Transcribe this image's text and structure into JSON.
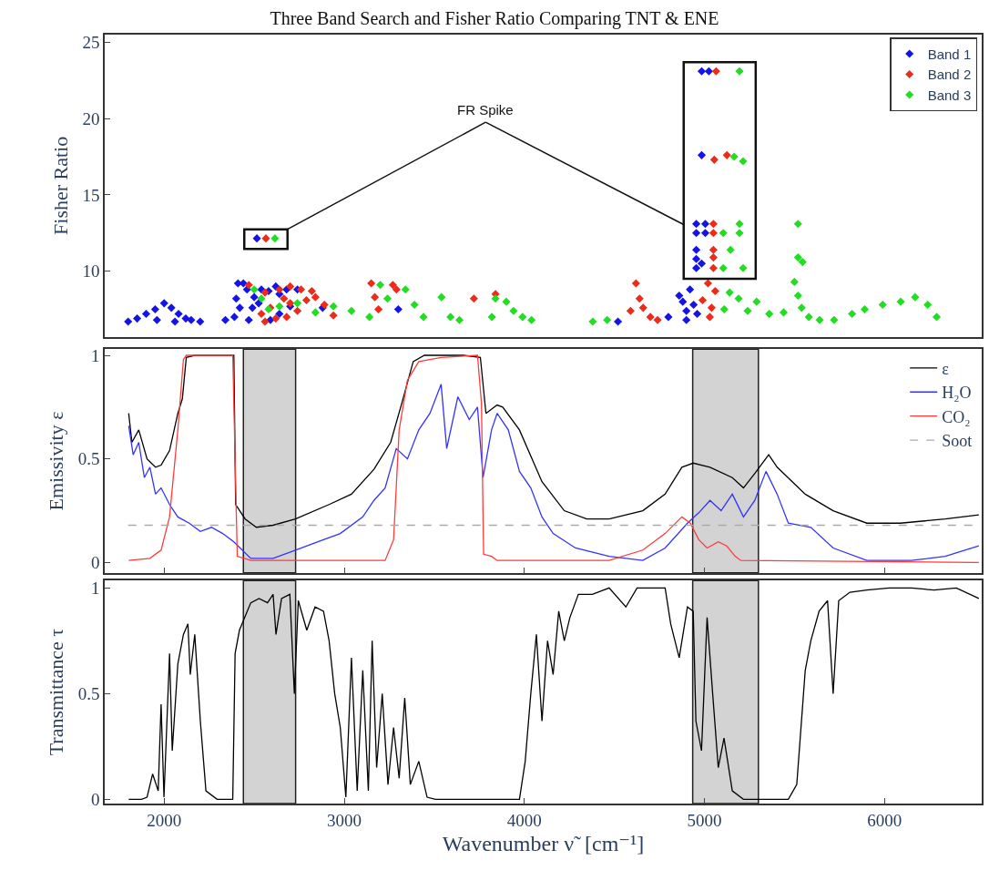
{
  "chart_data": [
    {
      "type": "scatter",
      "title": "Three Band Search and Fisher Ratio Comparing TNT & ENE",
      "ylabel": "Fisher Ratio",
      "xlim": [
        1670,
        6540
      ],
      "ylim": [
        5.7,
        25.5
      ],
      "yticks": [
        10,
        15,
        20,
        25
      ],
      "tick_labels": "y",
      "legend": "top right",
      "marker": "diamond",
      "annotations": [
        "FR Spike"
      ],
      "series": [
        {
          "name": "Band 1",
          "color": "#1414e6",
          "x": [
            1800,
            1850,
            1900,
            1950,
            2000,
            2040,
            2080,
            2120,
            1960,
            2060,
            2150,
            2200,
            2340,
            2390,
            2400,
            2410,
            2440,
            2460,
            2500,
            2540,
            2580,
            2620,
            2640,
            2680,
            2740,
            2490,
            2525,
            2640,
            2700,
            2420,
            2470,
            2590,
            2880,
            3300,
            4520,
            4800,
            4860,
            4880,
            4900,
            4920,
            4940,
            4960,
            4900,
            2515,
            4985,
            5025,
            4985,
            4955,
            5005,
            4955,
            5005,
            4955,
            4955,
            4985,
            4955
          ],
          "values": [
            6.7,
            6.9,
            7.2,
            7.5,
            7.9,
            7.6,
            7.2,
            6.9,
            6.8,
            6.7,
            6.8,
            6.7,
            6.8,
            7.0,
            8.2,
            9.2,
            9.2,
            8.8,
            8.3,
            8.8,
            8.7,
            9.0,
            8.5,
            8.8,
            8.8,
            7.6,
            7.9,
            7.2,
            7.7,
            7.6,
            6.8,
            6.8,
            7.6,
            7.5,
            6.7,
            7.0,
            8.4,
            8.0,
            7.4,
            8.8,
            7.8,
            7.2,
            6.8,
            12.15,
            23.1,
            23.1,
            17.6,
            13.1,
            13.1,
            12.5,
            12.5,
            11.4,
            10.8,
            10.5,
            10.2
          ]
        },
        {
          "name": "Band 2",
          "color": "#ee2a1a",
          "x": [
            2470,
            2560,
            2640,
            2700,
            2760,
            2820,
            2540,
            2590,
            2665,
            2700,
            2740,
            2790,
            2560,
            2620,
            2680,
            2840,
            2890,
            2940,
            3150,
            3170,
            3190,
            3270,
            3290,
            3720,
            3840,
            4590,
            4640,
            4660,
            4700,
            4620,
            4740,
            4990,
            5020,
            5040,
            5060,
            5030,
            2565,
            5065,
            5055,
            5125,
            5050,
            5050,
            5050,
            5050,
            5050
          ],
          "values": [
            9.1,
            8.6,
            8.8,
            9.0,
            8.8,
            8.7,
            7.2,
            7.6,
            8.2,
            7.9,
            7.4,
            8.1,
            6.7,
            6.9,
            7.0,
            8.3,
            7.8,
            7.1,
            9.2,
            8.3,
            7.5,
            9.1,
            8.8,
            8.2,
            8.5,
            7.4,
            8.2,
            7.6,
            7.0,
            9.2,
            6.8,
            8.1,
            9.2,
            7.6,
            8.7,
            7.0,
            12.15,
            23.1,
            17.3,
            17.6,
            13.1,
            12.5,
            11.4,
            10.9,
            10.2
          ]
        },
        {
          "name": "Band 3",
          "color": "#22dd22",
          "x": [
            2500,
            2540,
            2580,
            2640,
            2740,
            2840,
            2940,
            3040,
            3140,
            3200,
            3240,
            3340,
            3390,
            3440,
            3540,
            3590,
            3640,
            3820,
            3840,
            3900,
            3940,
            3990,
            4040,
            4380,
            4460,
            5110,
            5140,
            5190,
            5240,
            5290,
            5360,
            5440,
            5500,
            5520,
            5540,
            5580,
            5640,
            5720,
            5820,
            5890,
            5990,
            6090,
            6170,
            6240,
            6290,
            2615,
            5195,
            5165,
            5215,
            5195,
            5105,
            5195,
            5145,
            5105,
            5215,
            5520,
            5520,
            5545
          ],
          "values": [
            8.8,
            8.2,
            7.5,
            7.7,
            7.9,
            7.3,
            7.7,
            7.4,
            7.0,
            9.1,
            8.2,
            8.8,
            7.8,
            7.0,
            8.3,
            7.0,
            6.8,
            7.0,
            8.2,
            8.0,
            7.4,
            7.0,
            6.8,
            6.7,
            6.8,
            7.5,
            8.6,
            8.2,
            7.4,
            8.0,
            7.2,
            7.3,
            9.3,
            8.4,
            7.6,
            7.0,
            6.8,
            6.8,
            7.2,
            7.5,
            7.8,
            8.0,
            8.3,
            7.8,
            7.0,
            12.15,
            23.1,
            17.5,
            17.2,
            13.1,
            12.5,
            12.5,
            11.4,
            10.2,
            10.2,
            13.1,
            10.9,
            10.6
          ]
        }
      ]
    },
    {
      "type": "line",
      "ylabel": "Emissivity ε",
      "xlim": [
        1670,
        6540
      ],
      "xticks": [
        2000,
        3000,
        4000,
        5000,
        6000
      ],
      "ylim": [
        -0.05,
        1.03
      ],
      "yticks": [
        0,
        0.5,
        1
      ],
      "tick_labels": "y",
      "legend": "top right",
      "bands": [
        {
          "axis": "x",
          "from": 2440,
          "to": 2730,
          "color": "#d3d3d3"
        },
        {
          "axis": "x",
          "from": 4935,
          "to": 5300,
          "color": "#d3d3d3"
        }
      ],
      "series": [
        {
          "name": "ε",
          "color": "#000000",
          "x": [
            1803,
            1821,
            1859,
            1905,
            1952,
            1983,
            2030,
            2076,
            2101,
            2123,
            2170,
            2387,
            2397,
            2450,
            2512,
            2605,
            2729,
            2916,
            3040,
            3165,
            3258,
            3320,
            3383,
            3445,
            3662,
            3756,
            3787,
            3849,
            3880,
            3973,
            4098,
            4222,
            4347,
            4471,
            4658,
            4782,
            4875,
            4938,
            5031,
            5155,
            5217,
            5280,
            5357,
            5404,
            5560,
            5715,
            5902,
            6088,
            6337,
            6524
          ],
          "values": [
            0.72,
            0.58,
            0.64,
            0.5,
            0.46,
            0.47,
            0.54,
            0.72,
            0.79,
            0.99,
            1.0,
            1.0,
            0.28,
            0.21,
            0.17,
            0.18,
            0.21,
            0.28,
            0.33,
            0.45,
            0.58,
            0.77,
            0.97,
            1.0,
            1.0,
            0.99,
            0.72,
            0.76,
            0.75,
            0.64,
            0.39,
            0.25,
            0.21,
            0.21,
            0.25,
            0.33,
            0.46,
            0.48,
            0.46,
            0.41,
            0.36,
            0.43,
            0.52,
            0.46,
            0.33,
            0.25,
            0.19,
            0.19,
            0.21,
            0.23
          ]
        },
        {
          "name": "H₂O",
          "color": "#3333ff",
          "x": [
            1803,
            1828,
            1859,
            1890,
            1921,
            1952,
            1983,
            2030,
            2076,
            2139,
            2201,
            2263,
            2325,
            2387,
            2481,
            2605,
            2729,
            2854,
            2978,
            3103,
            3165,
            3227,
            3289,
            3351,
            3414,
            3476,
            3538,
            3569,
            3631,
            3694,
            3740,
            3771,
            3818,
            3849,
            3911,
            3973,
            4036,
            4098,
            4160,
            4284,
            4471,
            4658,
            4782,
            4906,
            4969,
            5031,
            5093,
            5155,
            5217,
            5280,
            5342,
            5404,
            5466,
            5591,
            5715,
            5902,
            6150,
            6337,
            6524
          ],
          "values": [
            0.66,
            0.52,
            0.58,
            0.41,
            0.46,
            0.33,
            0.36,
            0.28,
            0.22,
            0.19,
            0.15,
            0.17,
            0.14,
            0.1,
            0.02,
            0.02,
            0.06,
            0.1,
            0.14,
            0.22,
            0.3,
            0.36,
            0.55,
            0.5,
            0.64,
            0.72,
            0.86,
            0.55,
            0.8,
            0.69,
            0.75,
            0.41,
            0.64,
            0.72,
            0.64,
            0.44,
            0.36,
            0.22,
            0.14,
            0.07,
            0.03,
            0.01,
            0.07,
            0.19,
            0.24,
            0.3,
            0.25,
            0.33,
            0.22,
            0.3,
            0.44,
            0.33,
            0.19,
            0.17,
            0.07,
            0.01,
            0.01,
            0.03,
            0.08
          ]
        },
        {
          "name": "CO₂",
          "color": "#ff3b3b",
          "x": [
            1803,
            1921,
            1983,
            2030,
            2076,
            2107,
            2123,
            2381,
            2394,
            2406,
            2481,
            3227,
            3274,
            3305,
            3351,
            3414,
            3538,
            3740,
            3762,
            3774,
            3818,
            3849,
            4471,
            4658,
            4782,
            4875,
            4922,
            4969,
            5015,
            5077,
            5124,
            5171,
            5202,
            6524
          ],
          "values": [
            0.01,
            0.02,
            0.06,
            0.22,
            0.64,
            0.98,
            1.0,
            1.0,
            0.5,
            0.03,
            0.01,
            0.01,
            0.11,
            0.64,
            0.88,
            0.97,
            0.99,
            1.0,
            0.77,
            0.04,
            0.03,
            0.01,
            0.01,
            0.06,
            0.14,
            0.22,
            0.19,
            0.11,
            0.07,
            0.1,
            0.08,
            0.03,
            0.01,
            0.0
          ]
        },
        {
          "name": "Soot",
          "color": "#aaaaaa",
          "line_style": "dashed",
          "x": [
            1800,
            6530
          ],
          "values": [
            0.18,
            0.18
          ]
        }
      ]
    },
    {
      "type": "line",
      "xlabel": "Wavenumber ν̃  [cm⁻¹]",
      "ylabel": "Transmittance τ",
      "xlim": [
        1670,
        6540
      ],
      "xticks": [
        2000,
        3000,
        4000,
        5000,
        6000
      ],
      "ylim": [
        -0.02,
        1.035
      ],
      "yticks": [
        0,
        0.5,
        1
      ],
      "bands": [
        {
          "axis": "x",
          "from": 2440,
          "to": 2730,
          "color": "#d3d3d3"
        },
        {
          "axis": "x",
          "from": 4935,
          "to": 5300,
          "color": "#d3d3d3"
        }
      ],
      "series": [
        {
          "color": "#000000",
          "x": [
            1803,
            1874,
            1905,
            1936,
            1967,
            1983,
            1999,
            2030,
            2045,
            2076,
            2107,
            2132,
            2145,
            2170,
            2201,
            2232,
            2294,
            2381,
            2394,
            2418,
            2481,
            2527,
            2574,
            2605,
            2621,
            2652,
            2698,
            2723,
            2745,
            2792,
            2838,
            2885,
            2916,
            2947,
            2978,
            3009,
            3040,
            3072,
            3103,
            3134,
            3155,
            3180,
            3211,
            3243,
            3274,
            3305,
            3336,
            3367,
            3414,
            3460,
            3507,
            3973,
            4005,
            4036,
            4067,
            4098,
            4129,
            4160,
            4191,
            4222,
            4253,
            4300,
            4378,
            4471,
            4564,
            4626,
            4782,
            4813,
            4860,
            4906,
            4938,
            4953,
            4984,
            5015,
            5046,
            5077,
            5109,
            5155,
            5217,
            5466,
            5513,
            5560,
            5591,
            5637,
            5684,
            5715,
            5746,
            5808,
            5902,
            6026,
            6150,
            6275,
            6399,
            6524
          ],
          "values": [
            0.0,
            0.0,
            0.01,
            0.12,
            0.04,
            0.45,
            0.01,
            0.69,
            0.23,
            0.64,
            0.78,
            0.83,
            0.59,
            0.78,
            0.37,
            0.04,
            0.0,
            0.0,
            0.69,
            0.8,
            0.93,
            0.95,
            0.93,
            0.97,
            0.78,
            0.95,
            0.97,
            0.5,
            0.94,
            0.8,
            0.91,
            0.89,
            0.75,
            0.5,
            0.34,
            0.01,
            0.67,
            0.04,
            0.61,
            0.04,
            0.75,
            0.15,
            0.5,
            0.07,
            0.34,
            0.1,
            0.48,
            0.07,
            0.18,
            0.01,
            0.0,
            0.0,
            0.18,
            0.5,
            0.78,
            0.37,
            0.75,
            0.59,
            0.89,
            0.75,
            0.86,
            0.97,
            0.97,
            1.0,
            0.91,
            1.0,
            1.0,
            0.83,
            0.67,
            0.91,
            0.89,
            0.37,
            0.23,
            0.86,
            0.5,
            0.15,
            0.29,
            0.04,
            0.0,
            0.0,
            0.07,
            0.61,
            0.75,
            0.89,
            0.94,
            0.5,
            0.94,
            0.98,
            0.99,
            1.0,
            1.0,
            0.99,
            1.0,
            0.95
          ]
        }
      ]
    }
  ]
}
